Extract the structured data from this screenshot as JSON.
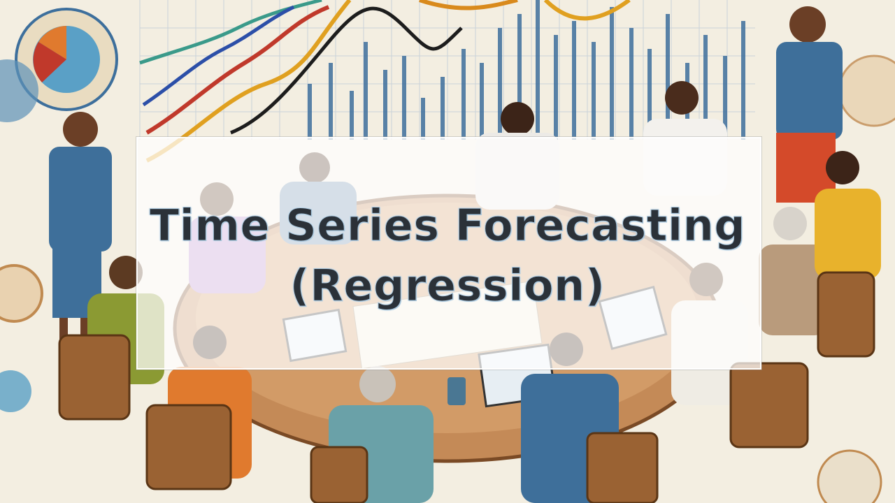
{
  "title": {
    "line1": "Time Series Forecasting",
    "line2": "(Regression)"
  },
  "colors": {
    "background": "#f3eee1",
    "title_text": "#2b3138",
    "title_outline": "#a9c6dc",
    "panel": "#ffffff"
  },
  "image_description_icons": [
    "chart-background",
    "people-at-table"
  ]
}
